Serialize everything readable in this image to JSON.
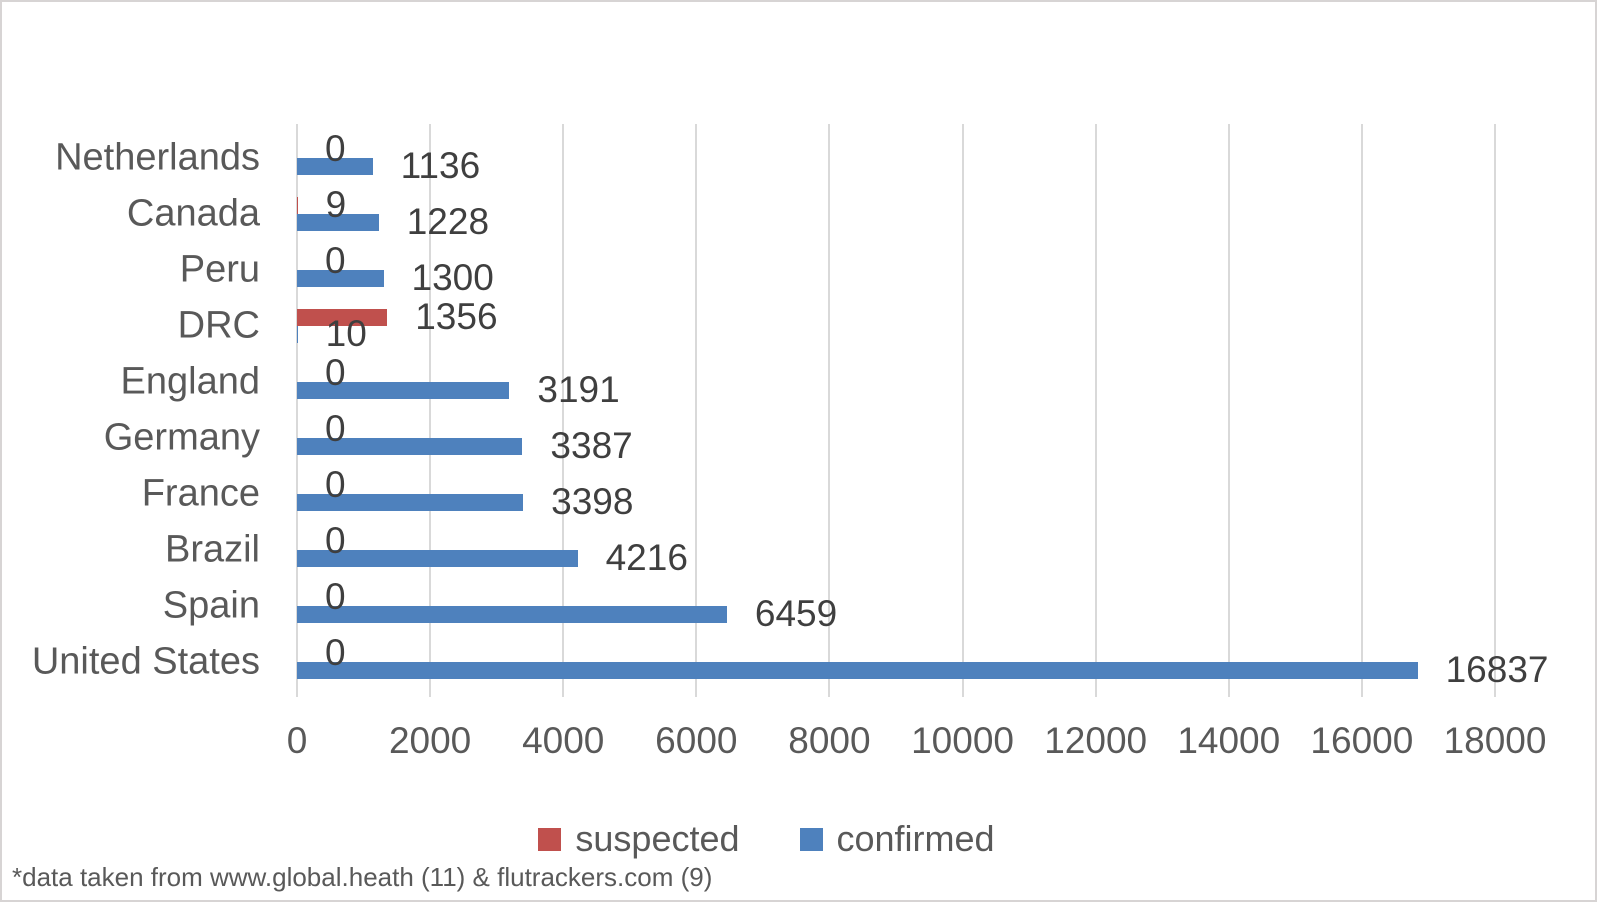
{
  "chart_data": {
    "type": "bar",
    "orientation": "horizontal",
    "title": "",
    "categories": [
      "Netherlands",
      "Canada",
      "Peru",
      "DRC",
      "England",
      "Germany",
      "France",
      "Brazil",
      "Spain",
      "United States"
    ],
    "series": [
      {
        "name": "suspected",
        "color": "#C0504D",
        "values": [
          0,
          9,
          0,
          1356,
          0,
          0,
          0,
          0,
          0,
          0
        ]
      },
      {
        "name": "confirmed",
        "color": "#4E81BD",
        "values": [
          1136,
          1228,
          1300,
          10,
          3191,
          3387,
          3398,
          4216,
          6459,
          16837
        ]
      }
    ],
    "xlim": [
      0,
      18000
    ],
    "xticks": [
      0,
      2000,
      4000,
      6000,
      8000,
      10000,
      12000,
      14000,
      16000,
      18000
    ],
    "grid": "vertical",
    "legend_position": "bottom",
    "data_labels": "outside-end"
  },
  "footnote": "*data taken from www.global.heath (11) & flutrackers.com (9)",
  "colors": {
    "suspected": "#C0504D",
    "confirmed": "#4E81BD",
    "gridline": "#D9D9D9",
    "axis_text": "#595959",
    "data_label_text": "#3F3F3F",
    "frame_border": "#D7D4D4"
  }
}
